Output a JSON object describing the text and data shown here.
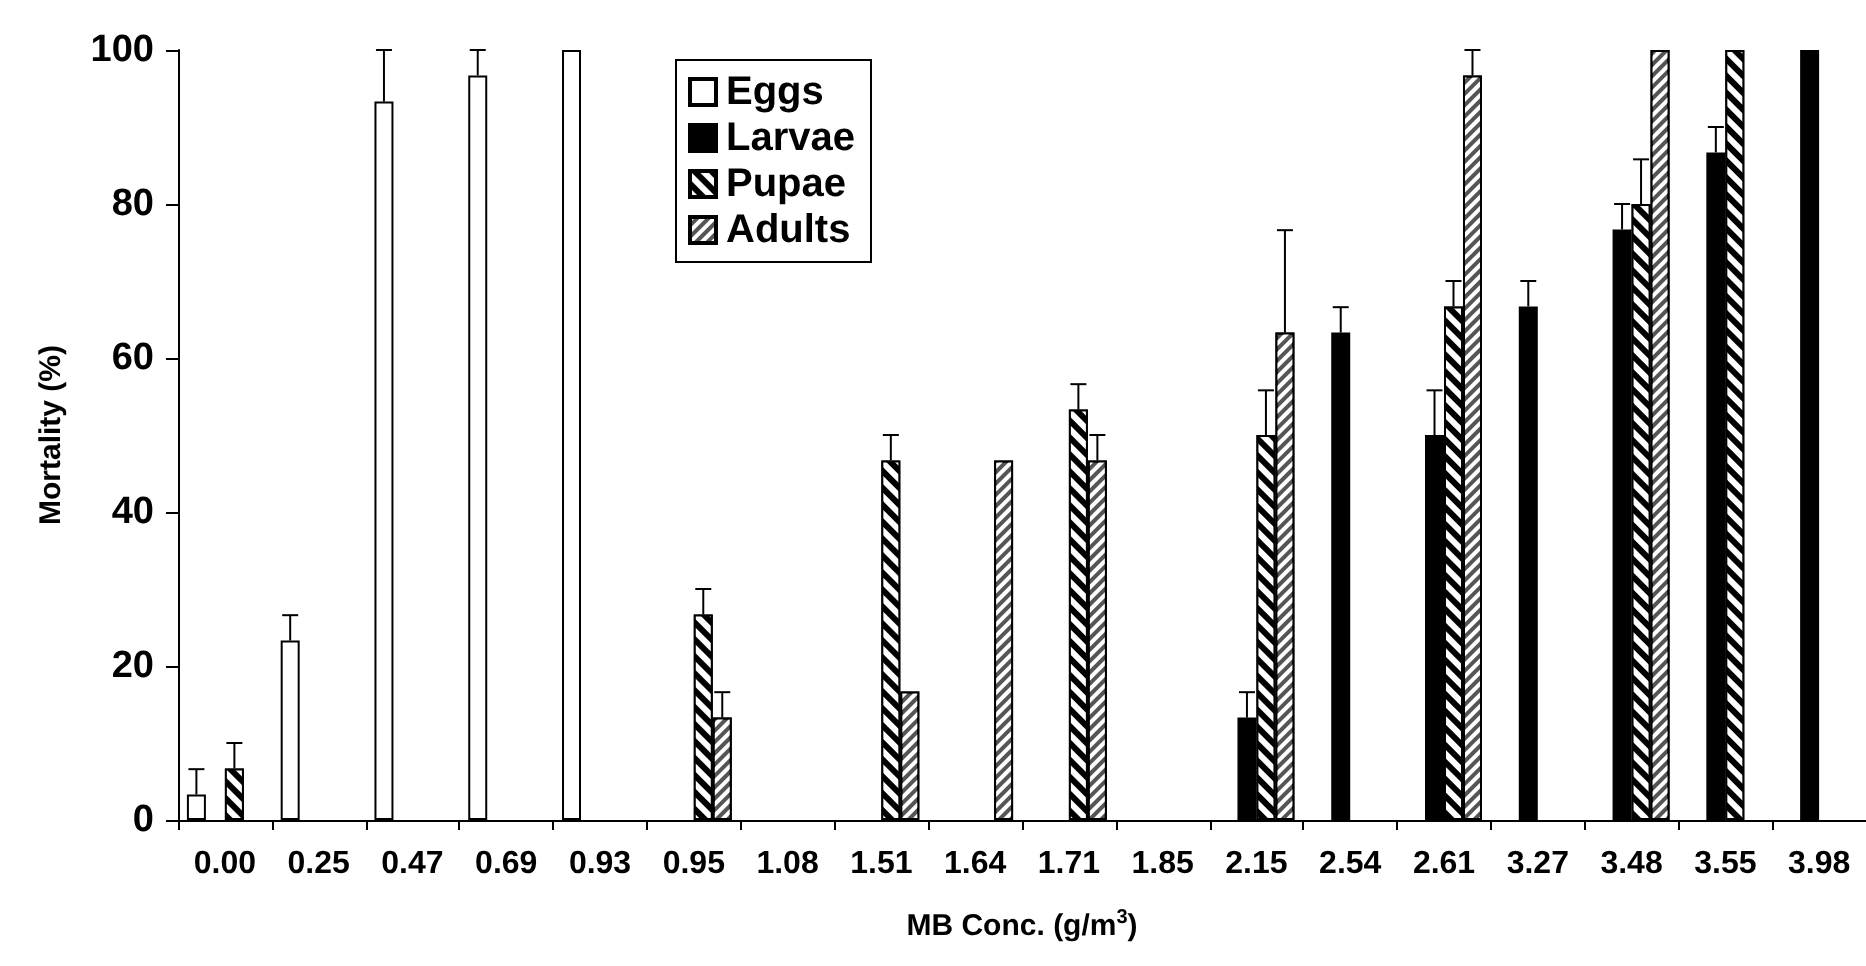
{
  "chart_data": {
    "type": "bar",
    "xlabel": "MB Conc. (g/m$^{3}$)",
    "ylabel": "Mortality (%)",
    "categories": [
      "0.00",
      "0.25",
      "0.47",
      "0.69",
      "0.93",
      "0.95",
      "1.08",
      "1.51",
      "1.64",
      "1.71",
      "1.85",
      "2.15",
      "2.54",
      "2.61",
      "3.27",
      "3.48",
      "3.55",
      "3.98"
    ],
    "series": [
      {
        "name": "Eggs",
        "color": "#ffffff",
        "values": [
          3.3,
          23.3,
          93.3,
          96.7,
          100,
          null,
          null,
          null,
          null,
          null,
          null,
          null,
          null,
          null,
          null,
          null,
          null,
          null
        ],
        "errors": [
          3.3,
          3.3,
          6.7,
          3.3,
          null,
          null,
          null,
          null,
          null,
          null,
          null,
          null,
          null,
          null,
          null,
          null,
          null,
          null
        ]
      },
      {
        "name": "Larvae",
        "color": "#000000",
        "values": [
          null,
          null,
          null,
          null,
          null,
          null,
          null,
          null,
          null,
          null,
          null,
          13.3,
          63.3,
          50,
          66.7,
          76.7,
          86.7,
          100
        ],
        "errors": [
          null,
          null,
          null,
          null,
          null,
          null,
          null,
          null,
          null,
          null,
          null,
          3.3,
          3.3,
          5.8,
          3.3,
          3.3,
          3.3,
          null
        ]
      },
      {
        "name": "Pupae",
        "color": "#000000",
        "values": [
          6.7,
          null,
          null,
          null,
          null,
          26.7,
          null,
          46.7,
          null,
          53.3,
          null,
          50,
          null,
          66.7,
          null,
          80,
          100,
          null
        ],
        "errors": [
          3.3,
          null,
          null,
          null,
          null,
          3.3,
          null,
          3.3,
          null,
          3.3,
          null,
          5.8,
          null,
          3.3,
          null,
          5.8,
          null,
          null
        ]
      },
      {
        "name": "Adults",
        "color": "#555555",
        "values": [
          null,
          null,
          null,
          null,
          null,
          13.3,
          null,
          16.7,
          46.7,
          46.7,
          null,
          63.3,
          null,
          96.7,
          null,
          100,
          null,
          null
        ],
        "errors": [
          null,
          null,
          null,
          null,
          null,
          3.3,
          null,
          null,
          null,
          3.3,
          null,
          13.3,
          null,
          3.3,
          null,
          null,
          null,
          null
        ]
      }
    ],
    "ylim": [
      0,
      100
    ],
    "yticks": [
      0,
      20,
      40,
      60,
      80,
      100
    ],
    "grid": false,
    "legend": "top center"
  }
}
